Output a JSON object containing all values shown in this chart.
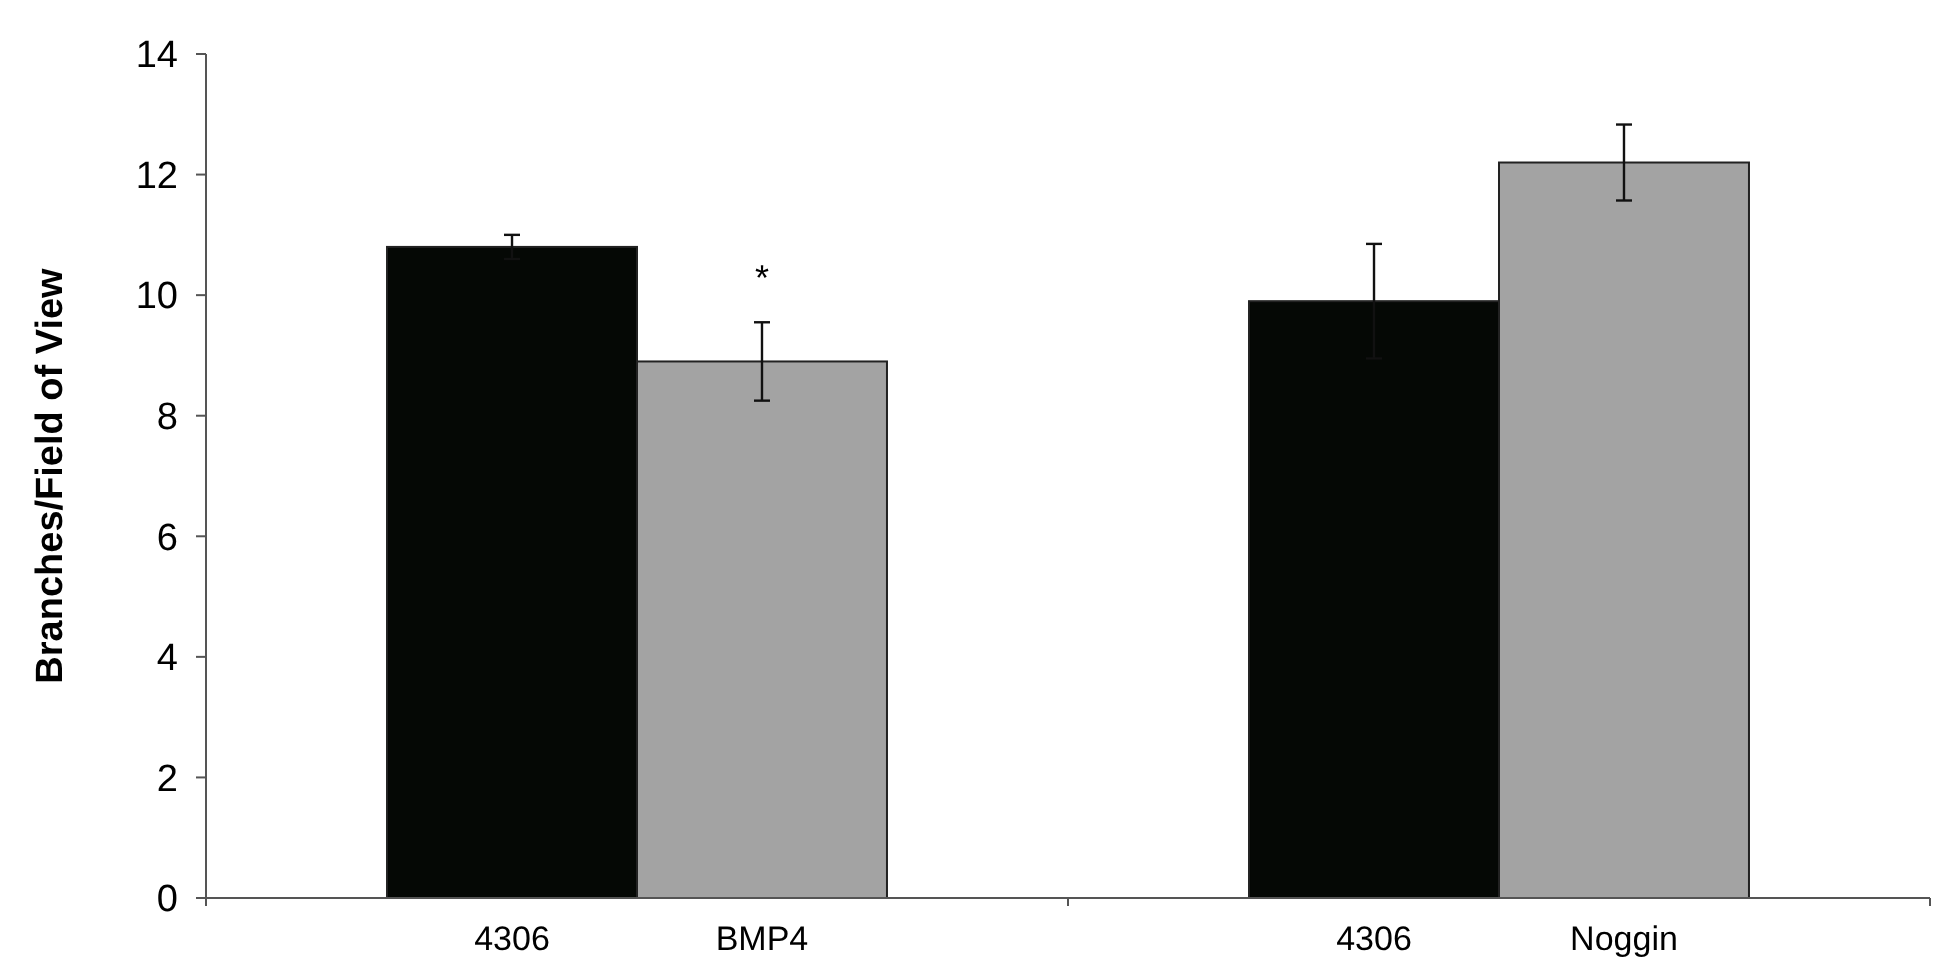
{
  "chart_data": {
    "type": "bar",
    "ylabel": "Branches/Field of View",
    "categories": [
      "4306",
      "BMP4",
      "4306",
      "Noggin"
    ],
    "values": [
      10.8,
      8.9,
      9.9,
      12.2
    ],
    "errors": [
      0.2,
      0.65,
      0.95,
      0.63
    ],
    "colors": [
      "#050805",
      "#a3a3a3",
      "#050805",
      "#a3a3a3"
    ],
    "ylim": [
      0,
      14
    ],
    "yticks": [
      0,
      2,
      4,
      6,
      8,
      10,
      12,
      14
    ],
    "grid": false,
    "annotations": [
      {
        "text": "*",
        "x": "BMP4",
        "y": 9.55
      }
    ]
  }
}
